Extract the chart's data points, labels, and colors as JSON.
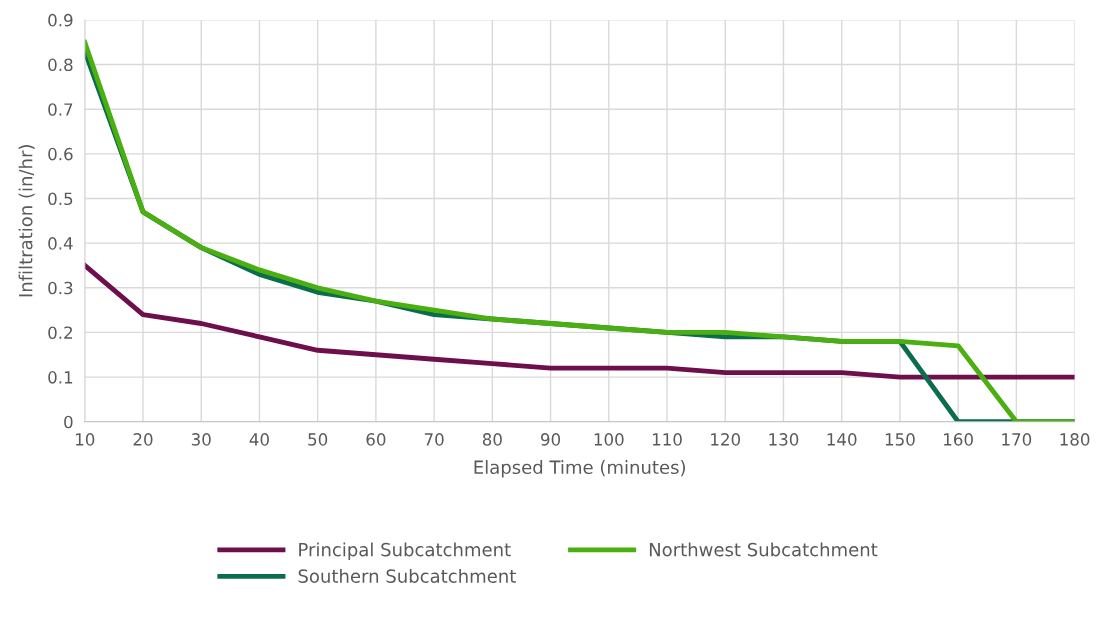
{
  "chart_data": {
    "type": "line",
    "xlabel": "Elapsed Time (minutes)",
    "ylabel": "Infiltration (in/hr)",
    "x": [
      10,
      20,
      30,
      40,
      50,
      60,
      70,
      80,
      90,
      100,
      110,
      120,
      130,
      140,
      150,
      160,
      170,
      180
    ],
    "series": [
      {
        "name": "Principal Subcatchment",
        "color": "#6e0f4d",
        "values": [
          0.35,
          0.24,
          0.22,
          0.19,
          0.16,
          0.15,
          0.14,
          0.13,
          0.12,
          0.12,
          0.12,
          0.11,
          0.11,
          0.11,
          0.1,
          0.1,
          0.1,
          0.1
        ]
      },
      {
        "name": "Southern Subcatchment",
        "color": "#0b6e4b",
        "values": [
          0.83,
          0.47,
          0.39,
          0.33,
          0.29,
          0.27,
          0.24,
          0.23,
          0.22,
          0.21,
          0.2,
          0.19,
          0.19,
          0.18,
          0.18,
          0,
          0,
          0
        ]
      },
      {
        "name": "Northwest Subcatchment",
        "color": "#4caf11",
        "values": [
          0.85,
          0.47,
          0.39,
          0.34,
          0.3,
          0.27,
          0.25,
          0.23,
          0.22,
          0.21,
          0.2,
          0.2,
          0.19,
          0.18,
          0.18,
          0.17,
          0,
          0
        ]
      }
    ],
    "xlim": [
      10,
      180
    ],
    "xticks": [
      10,
      20,
      30,
      40,
      50,
      60,
      70,
      80,
      90,
      100,
      110,
      120,
      130,
      140,
      150,
      160,
      170,
      180
    ],
    "ylim": [
      0,
      0.9
    ],
    "yticks": [
      0,
      0.1,
      0.2,
      0.3,
      0.4,
      0.5,
      0.6,
      0.7,
      0.8,
      0.9
    ],
    "grid": true,
    "legend": "bottom",
    "marker": "none",
    "line_style": "solid"
  }
}
